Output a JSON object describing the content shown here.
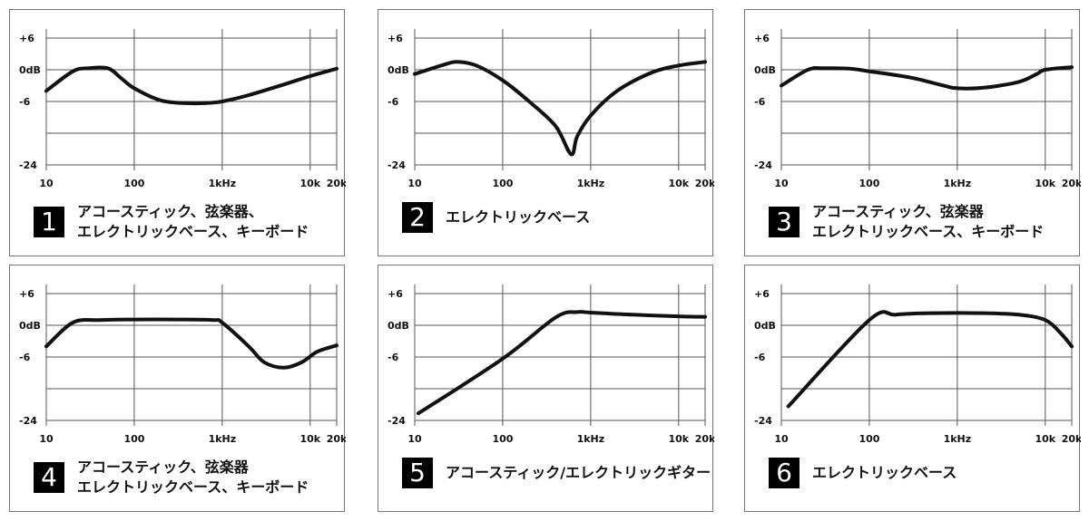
{
  "y_tick_labels": [
    "+6",
    "0dB",
    "-6",
    "-24"
  ],
  "x_tick_labels": [
    "10",
    "100",
    "1kHz",
    "10k",
    "20k"
  ],
  "chart_data": [
    {
      "type": "line",
      "number": "1",
      "caption": "アコースティック、弦楽器、\nエレクトリックベース、キーボード",
      "x_scale": "log",
      "xlim": [
        10,
        20000
      ],
      "y_ticks": [
        "+6",
        "0dB",
        "-6",
        "-24"
      ],
      "x_ticks": [
        "10",
        "100",
        "1kHz",
        "10k",
        "20k"
      ],
      "points": [
        [
          10,
          -4
        ],
        [
          20,
          -0.3
        ],
        [
          30,
          0.3
        ],
        [
          50,
          0.3
        ],
        [
          70,
          -1.5
        ],
        [
          100,
          -3.5
        ],
        [
          200,
          -5.8
        ],
        [
          400,
          -6.5
        ],
        [
          700,
          -6.4
        ],
        [
          1000,
          -6
        ],
        [
          2000,
          -4.8
        ],
        [
          5000,
          -2.8
        ],
        [
          10000,
          -1.2
        ],
        [
          20000,
          0.2
        ]
      ]
    },
    {
      "type": "line",
      "number": "2",
      "caption": "エレクトリックベース",
      "x_scale": "log",
      "xlim": [
        10,
        20000
      ],
      "y_ticks": [
        "+6",
        "0dB",
        "-6",
        "-24"
      ],
      "x_ticks": [
        "10",
        "100",
        "1kHz",
        "10k",
        "20k"
      ],
      "points": [
        [
          10,
          -0.8
        ],
        [
          20,
          0.8
        ],
        [
          30,
          1.5
        ],
        [
          50,
          0.8
        ],
        [
          100,
          -2
        ],
        [
          200,
          -6
        ],
        [
          400,
          -13
        ],
        [
          600,
          -21
        ],
        [
          700,
          -16
        ],
        [
          1000,
          -10
        ],
        [
          2000,
          -4
        ],
        [
          5000,
          -0.5
        ],
        [
          10000,
          0.8
        ],
        [
          20000,
          1.5
        ]
      ]
    },
    {
      "type": "line",
      "number": "3",
      "caption": "アコースティック、弦楽器\nエレクトリックベース、キーボード",
      "x_scale": "log",
      "xlim": [
        10,
        20000
      ],
      "y_ticks": [
        "+6",
        "0dB",
        "-6",
        "-24"
      ],
      "x_ticks": [
        "10",
        "100",
        "1kHz",
        "10k",
        "20k"
      ],
      "points": [
        [
          10,
          -3
        ],
        [
          20,
          0
        ],
        [
          30,
          0.3
        ],
        [
          60,
          0.2
        ],
        [
          100,
          -0.3
        ],
        [
          300,
          -1.5
        ],
        [
          700,
          -3
        ],
        [
          1000,
          -3.5
        ],
        [
          2000,
          -3.4
        ],
        [
          5000,
          -2.3
        ],
        [
          8000,
          -0.8
        ],
        [
          10000,
          0
        ],
        [
          20000,
          0.5
        ]
      ]
    },
    {
      "type": "line",
      "number": "4",
      "caption": "アコースティック、弦楽器\nエレクトリックベース、キーボード",
      "x_scale": "log",
      "xlim": [
        10,
        20000
      ],
      "y_ticks": [
        "+6",
        "0dB",
        "-6",
        "-24"
      ],
      "x_ticks": [
        "10",
        "100",
        "1kHz",
        "10k",
        "20k"
      ],
      "points": [
        [
          10,
          -4
        ],
        [
          20,
          0.5
        ],
        [
          40,
          1
        ],
        [
          100,
          1.1
        ],
        [
          300,
          1.1
        ],
        [
          800,
          1
        ],
        [
          1000,
          0.5
        ],
        [
          2000,
          -4
        ],
        [
          3000,
          -7.5
        ],
        [
          5000,
          -9
        ],
        [
          8000,
          -7.5
        ],
        [
          12000,
          -5
        ],
        [
          20000,
          -3.8
        ]
      ]
    },
    {
      "type": "line",
      "number": "5",
      "caption": "アコースティック/エレクトリックギター",
      "x_scale": "log",
      "xlim": [
        10,
        20000
      ],
      "y_ticks": [
        "+6",
        "0dB",
        "-6",
        "-24"
      ],
      "x_ticks": [
        "10",
        "100",
        "1kHz",
        "10k",
        "20k"
      ],
      "points": [
        [
          11,
          -22
        ],
        [
          100,
          -6.5
        ],
        [
          400,
          1.5
        ],
        [
          700,
          2.5
        ],
        [
          1000,
          2.4
        ],
        [
          3000,
          2
        ],
        [
          10000,
          1.7
        ],
        [
          20000,
          1.6
        ]
      ]
    },
    {
      "type": "line",
      "number": "6",
      "caption": "エレクトリックベース",
      "x_scale": "log",
      "xlim": [
        10,
        20000
      ],
      "y_ticks": [
        "+6",
        "0dB",
        "-6",
        "-24"
      ],
      "x_ticks": [
        "10",
        "100",
        "1kHz",
        "10k",
        "20k"
      ],
      "points": [
        [
          12,
          -20
        ],
        [
          100,
          1
        ],
        [
          200,
          2
        ],
        [
          500,
          2.3
        ],
        [
          2000,
          2.3
        ],
        [
          5000,
          2
        ],
        [
          10000,
          1
        ],
        [
          15000,
          -1.5
        ],
        [
          20000,
          -4
        ]
      ]
    }
  ]
}
